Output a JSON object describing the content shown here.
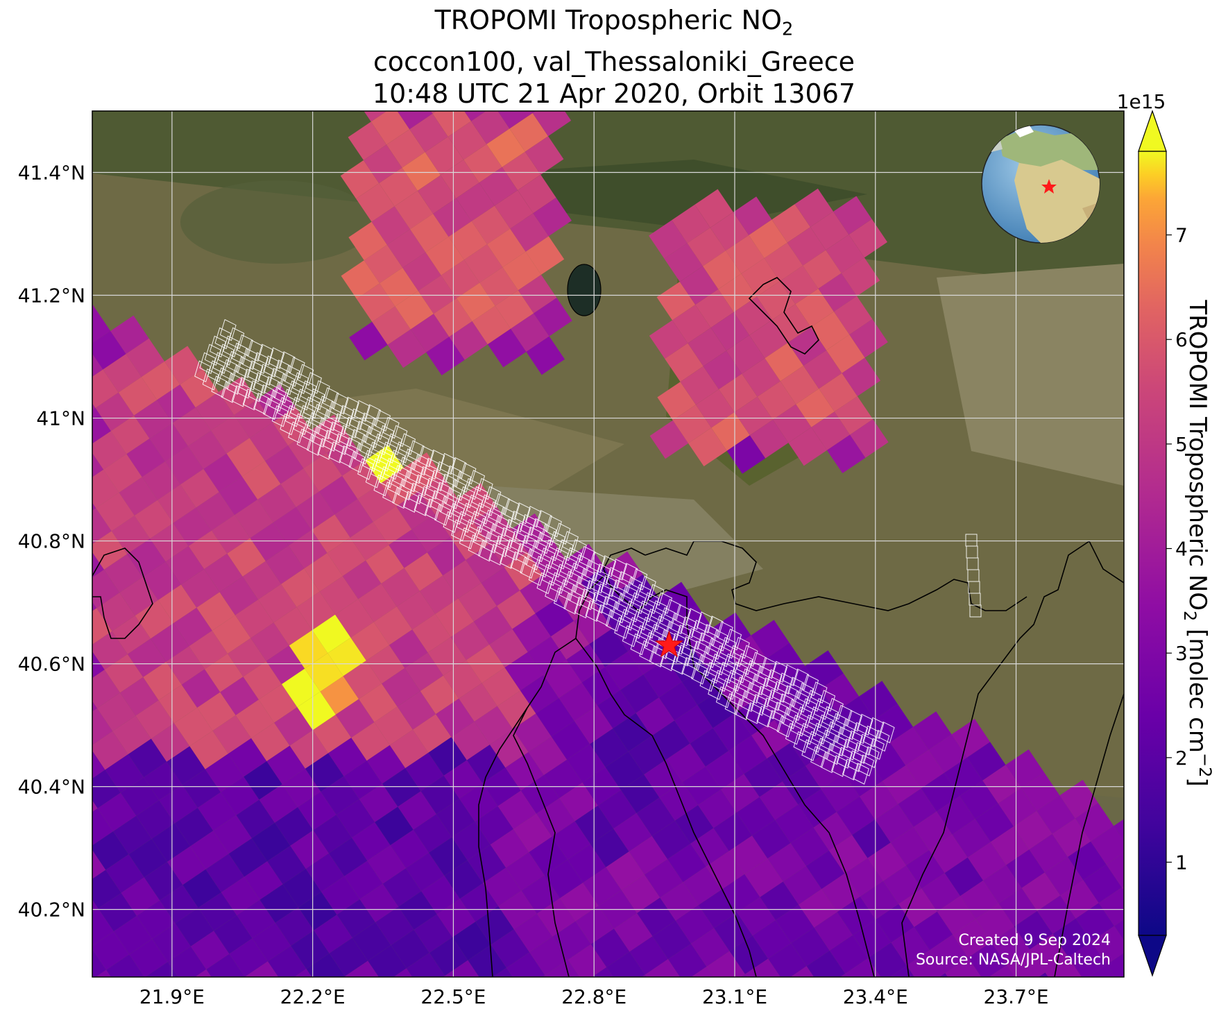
{
  "title": {
    "line1_main": "TROPOMI Tropospheric NO",
    "line1_sub": "2",
    "line2": "coccon100, val_Thessaloniki_Greece",
    "line3": "10:48 UTC 21 Apr 2020, Orbit 13067"
  },
  "axes": {
    "lon_range": [
      21.73,
      23.93
    ],
    "lat_range": [
      40.09,
      41.5
    ],
    "lon_ticks": [
      21.9,
      22.2,
      22.5,
      22.8,
      23.1,
      23.4,
      23.7
    ],
    "lon_tick_labels": [
      "21.9°E",
      "22.2°E",
      "22.5°E",
      "22.8°E",
      "23.1°E",
      "23.4°E",
      "23.7°E"
    ],
    "lat_ticks": [
      41.4,
      41.2,
      41.0,
      40.8,
      40.6,
      40.4,
      40.2
    ],
    "lat_tick_labels": [
      "41.4°N",
      "41.2°N",
      "41°N",
      "40.8°N",
      "40.6°N",
      "40.4°N",
      "40.2°N"
    ],
    "grid": true
  },
  "colorbar": {
    "colormap": "plasma",
    "range": [
      0.3,
      7.8
    ],
    "ticks": [
      1,
      2,
      3,
      4,
      5,
      6,
      7
    ],
    "tick_labels": [
      "1",
      "2",
      "3",
      "4",
      "5",
      "6",
      "7"
    ],
    "exponent": "1e15",
    "label_main": "TROPOMI Tropospheric NO",
    "label_sub": "2",
    "label_units": " [molec cm",
    "label_sup": "−2",
    "label_close": "]",
    "extend": "both"
  },
  "site": {
    "lon": 22.96,
    "lat": 40.63,
    "marker": "red-star"
  },
  "credit": {
    "line1": "Created 9 Sep 2024",
    "line2": "Source: NASA/JPL-Caltech"
  },
  "colors": {
    "site_marker": "#ff1a1a",
    "grid": "#d9d9d9",
    "footprint": "#ffffff",
    "coast": "#000000"
  },
  "chart_data": {
    "type": "heatmap",
    "description_units": "NO2 column, 1e15 molec cm^-2",
    "regions": [
      {
        "name": "west-plume",
        "lon_range": [
          21.73,
          22.65
        ],
        "lat_range": [
          40.45,
          41.1
        ],
        "value": 5.2
      },
      {
        "name": "hotspot-southwest",
        "lon": 22.22,
        "lat": 40.58,
        "value": 7.8
      },
      {
        "name": "hotspot-north",
        "lon": 22.35,
        "lat": 41.0,
        "value": 7.5
      },
      {
        "name": "southwest-low",
        "lon_range": [
          21.73,
          22.6
        ],
        "lat_range": [
          40.09,
          40.45
        ],
        "value": 2.0
      },
      {
        "name": "gulf",
        "lon_range": [
          22.8,
          23.4
        ],
        "lat_range": [
          40.3,
          40.75
        ],
        "value": 2.2
      },
      {
        "name": "east-band",
        "lon_range": [
          23.1,
          23.93
        ],
        "lat_range": [
          40.3,
          40.95
        ],
        "value": 3.0
      },
      {
        "name": "north-patch",
        "lon_range": [
          22.3,
          22.7
        ],
        "lat_range": [
          41.15,
          41.5
        ],
        "value": 5.8
      },
      {
        "name": "northeast-patch",
        "lon_range": [
          22.95,
          23.4
        ],
        "lat_range": [
          40.95,
          41.35
        ],
        "value": 5.6
      }
    ]
  }
}
